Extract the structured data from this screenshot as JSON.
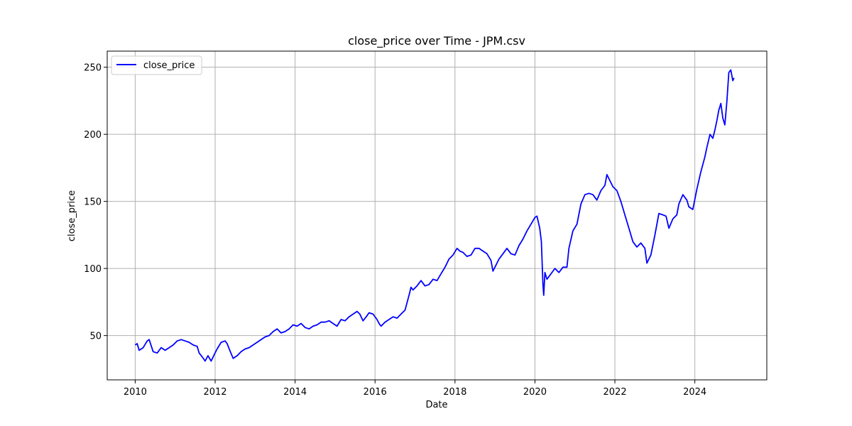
{
  "chart_data": {
    "type": "line",
    "title": "close_price over Time - JPM.csv",
    "xlabel": "Date",
    "ylabel": "close_price",
    "xlim": [
      2009.3,
      2025.8
    ],
    "ylim": [
      17,
      262
    ],
    "x_ticks": [
      2010,
      2012,
      2014,
      2016,
      2018,
      2020,
      2022,
      2024
    ],
    "x_tick_labels": [
      "2010",
      "2012",
      "2014",
      "2016",
      "2018",
      "2020",
      "2022",
      "2024"
    ],
    "y_ticks": [
      50,
      100,
      150,
      200,
      250
    ],
    "y_tick_labels": [
      "50",
      "100",
      "150",
      "200",
      "250"
    ],
    "grid": true,
    "legend_position": "top-left",
    "series": [
      {
        "name": "close_price",
        "color": "#0000ff",
        "x": [
          2010.0,
          2010.05,
          2010.1,
          2010.2,
          2010.3,
          2010.35,
          2010.45,
          2010.55,
          2010.65,
          2010.75,
          2010.85,
          2010.95,
          2011.05,
          2011.15,
          2011.25,
          2011.35,
          2011.45,
          2011.55,
          2011.6,
          2011.68,
          2011.75,
          2011.82,
          2011.9,
          2011.98,
          2012.05,
          2012.15,
          2012.25,
          2012.3,
          2012.38,
          2012.45,
          2012.55,
          2012.65,
          2012.75,
          2012.85,
          2012.95,
          2013.05,
          2013.15,
          2013.25,
          2013.35,
          2013.45,
          2013.55,
          2013.65,
          2013.75,
          2013.85,
          2013.95,
          2014.05,
          2014.15,
          2014.25,
          2014.35,
          2014.45,
          2014.55,
          2014.65,
          2014.75,
          2014.85,
          2014.95,
          2015.05,
          2015.15,
          2015.25,
          2015.35,
          2015.45,
          2015.55,
          2015.62,
          2015.7,
          2015.78,
          2015.85,
          2015.95,
          2016.05,
          2016.1,
          2016.15,
          2016.25,
          2016.35,
          2016.45,
          2016.55,
          2016.65,
          2016.75,
          2016.85,
          2016.9,
          2016.95,
          2017.05,
          2017.15,
          2017.25,
          2017.35,
          2017.45,
          2017.55,
          2017.65,
          2017.75,
          2017.85,
          2017.95,
          2018.05,
          2018.12,
          2018.2,
          2018.3,
          2018.4,
          2018.5,
          2018.6,
          2018.7,
          2018.8,
          2018.9,
          2018.95,
          2019.0,
          2019.1,
          2019.2,
          2019.3,
          2019.4,
          2019.5,
          2019.6,
          2019.7,
          2019.8,
          2019.9,
          2020.0,
          2020.05,
          2020.12,
          2020.16,
          2020.2,
          2020.22,
          2020.25,
          2020.3,
          2020.4,
          2020.5,
          2020.6,
          2020.7,
          2020.8,
          2020.85,
          2020.95,
          2021.05,
          2021.15,
          2021.25,
          2021.35,
          2021.45,
          2021.55,
          2021.65,
          2021.75,
          2021.8,
          2021.85,
          2021.95,
          2022.05,
          2022.15,
          2022.25,
          2022.35,
          2022.45,
          2022.55,
          2022.65,
          2022.75,
          2022.8,
          2022.9,
          2023.0,
          2023.1,
          2023.2,
          2023.28,
          2023.35,
          2023.45,
          2023.55,
          2023.6,
          2023.7,
          2023.8,
          2023.85,
          2023.95,
          2024.05,
          2024.15,
          2024.25,
          2024.3,
          2024.38,
          2024.45,
          2024.5,
          2024.55,
          2024.6,
          2024.65,
          2024.7,
          2024.75,
          2024.8,
          2024.85,
          2024.9,
          2024.95,
          2024.98
        ],
        "values": [
          43,
          44,
          39,
          41,
          46,
          47,
          38,
          37,
          41,
          39,
          41,
          43,
          46,
          47,
          46,
          45,
          43,
          42,
          37,
          34,
          31,
          35,
          31,
          36,
          40,
          45,
          46,
          44,
          38,
          33,
          35,
          38,
          40,
          41,
          43,
          45,
          47,
          49,
          50,
          53,
          55,
          52,
          53,
          55,
          58,
          57,
          59,
          56,
          55,
          57,
          58,
          60,
          60,
          61,
          59,
          57,
          62,
          61,
          64,
          66,
          68,
          66,
          61,
          64,
          67,
          66,
          62,
          59,
          57,
          60,
          62,
          64,
          63,
          66,
          69,
          80,
          86,
          84,
          87,
          91,
          87,
          88,
          92,
          91,
          96,
          101,
          107,
          110,
          115,
          113,
          112,
          109,
          110,
          115,
          115,
          113,
          111,
          106,
          98,
          101,
          107,
          111,
          115,
          111,
          110,
          117,
          122,
          128,
          133,
          138,
          139,
          130,
          120,
          88,
          80,
          97,
          92,
          96,
          100,
          97,
          101,
          101,
          115,
          128,
          133,
          148,
          155,
          156,
          155,
          151,
          158,
          162,
          170,
          167,
          161,
          158,
          150,
          140,
          130,
          120,
          116,
          119,
          115,
          104,
          110,
          125,
          141,
          140,
          139,
          130,
          137,
          140,
          148,
          155,
          151,
          146,
          144,
          159,
          172,
          183,
          190,
          200,
          197,
          203,
          210,
          218,
          223,
          212,
          207,
          224,
          246,
          248,
          240,
          242
        ]
      }
    ]
  }
}
